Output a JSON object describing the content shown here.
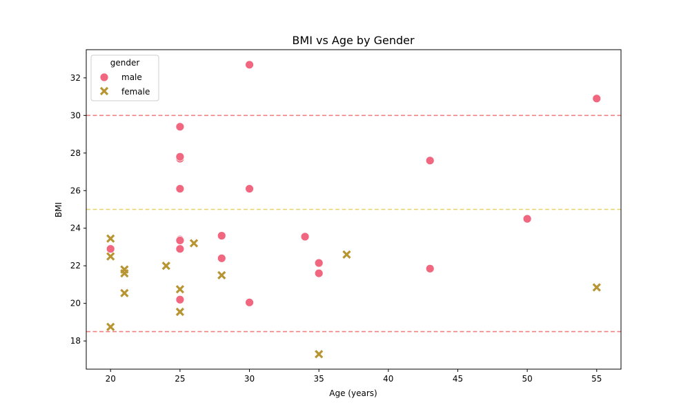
{
  "chart_data": {
    "type": "scatter",
    "title": "BMI vs Age by Gender",
    "xlabel": "Age (years)",
    "ylabel": "BMI",
    "xlim": [
      18.25,
      56.75
    ],
    "ylim": [
      16.5,
      33.5
    ],
    "xticks": [
      20,
      25,
      30,
      35,
      40,
      45,
      50,
      55
    ],
    "yticks": [
      18,
      20,
      22,
      24,
      26,
      28,
      30,
      32
    ],
    "grid": false,
    "legend": {
      "title": "gender",
      "placement": "top-left"
    },
    "reference_lines": [
      {
        "y": 30.0,
        "color": "#f08080"
      },
      {
        "y": 25.0,
        "color": "#e6d36e"
      },
      {
        "y": 18.5,
        "color": "#f08080"
      }
    ],
    "series": [
      {
        "name": "male",
        "marker": "circle",
        "color": "#f0677f",
        "points": [
          [
            30,
            32.7
          ],
          [
            55,
            30.9
          ],
          [
            25,
            29.4
          ],
          [
            25,
            27.7
          ],
          [
            25,
            27.8
          ],
          [
            43,
            27.6
          ],
          [
            25,
            26.1
          ],
          [
            30,
            26.1
          ],
          [
            50,
            24.5
          ],
          [
            28,
            23.6
          ],
          [
            34,
            23.55
          ],
          [
            25,
            23.4
          ],
          [
            25,
            23.35
          ],
          [
            20,
            22.9
          ],
          [
            25,
            22.9
          ],
          [
            28,
            22.4
          ],
          [
            35,
            22.15
          ],
          [
            43,
            21.85
          ],
          [
            35,
            21.6
          ],
          [
            25,
            20.2
          ],
          [
            30,
            20.05
          ]
        ]
      },
      {
        "name": "female",
        "marker": "x",
        "color": "#b89533",
        "points": [
          [
            20,
            23.45
          ],
          [
            26,
            23.2
          ],
          [
            37,
            22.6
          ],
          [
            20,
            22.5
          ],
          [
            24,
            22.0
          ],
          [
            21,
            21.8
          ],
          [
            21,
            21.6
          ],
          [
            28,
            21.5
          ],
          [
            55,
            20.85
          ],
          [
            25,
            20.75
          ],
          [
            21,
            20.55
          ],
          [
            25,
            19.55
          ],
          [
            20,
            18.75
          ],
          [
            35,
            17.3
          ]
        ]
      }
    ]
  }
}
